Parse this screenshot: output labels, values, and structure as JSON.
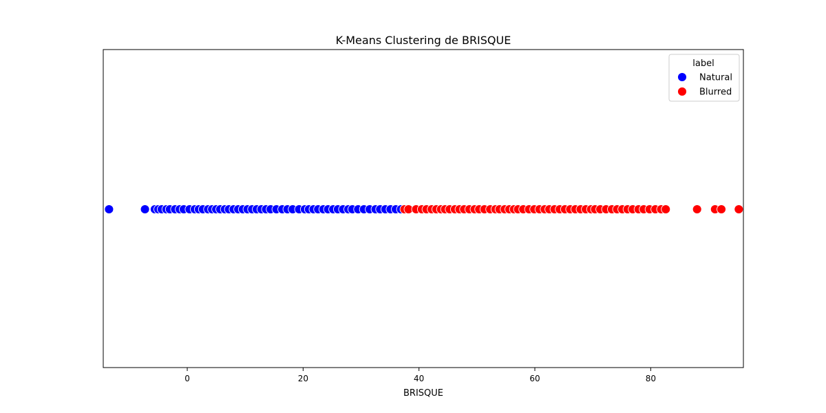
{
  "chart_data": {
    "type": "scatter",
    "title": "K-Means Clustering de BRISQUE",
    "xlabel": "BRISQUE",
    "ylabel": "",
    "xlim": [
      -14.5,
      96
    ],
    "xticks": [
      0,
      20,
      40,
      60,
      80
    ],
    "grid": false,
    "legend": {
      "title": "label",
      "placement": "top-right",
      "entries": [
        {
          "name": "Natural",
          "color": "#0000ff"
        },
        {
          "name": "Blurred",
          "color": "#ff0000"
        }
      ]
    },
    "series": [
      {
        "name": "Natural",
        "color": "#0000ff",
        "x": [
          -13.5,
          -7.3,
          -5.6,
          -5.0,
          -4.4,
          -3.6,
          -3.0,
          -2.1,
          -1.3,
          -0.6,
          0.4,
          1.3,
          2.0,
          2.7,
          3.6,
          4.3,
          5.0,
          5.7,
          6.5,
          7.2,
          8.0,
          8.8,
          9.6,
          10.4,
          11.2,
          12.0,
          12.8,
          13.6,
          14.4,
          15.4,
          16.4,
          17.3,
          18.2,
          19.3,
          20.3,
          21.0,
          21.8,
          22.6,
          23.5,
          24.3,
          25.2,
          26.0,
          26.9,
          27.8,
          28.5,
          29.5,
          30.5,
          31.5,
          32.5,
          33.3,
          34.2,
          35.1,
          36.0,
          36.9
        ]
      },
      {
        "name": "Blurred",
        "color": "#ff0000",
        "x": [
          37.5,
          38.2,
          39.5,
          40.5,
          41.3,
          42.2,
          43.0,
          43.8,
          44.5,
          45.3,
          46.2,
          47.0,
          47.8,
          48.7,
          49.6,
          50.4,
          51.3,
          52.3,
          53.2,
          53.9,
          54.8,
          55.6,
          56.4,
          57.1,
          58.0,
          59.0,
          59.9,
          60.8,
          61.7,
          62.5,
          63.4,
          64.3,
          65.2,
          66.1,
          67.0,
          67.9,
          68.8,
          69.7,
          70.4,
          71.3,
          72.3,
          73.3,
          74.2,
          75.1,
          76.0,
          76.9,
          77.9,
          78.8,
          79.8,
          80.8,
          81.8,
          82.6,
          88.0,
          91.1,
          92.2,
          95.2
        ]
      }
    ]
  }
}
